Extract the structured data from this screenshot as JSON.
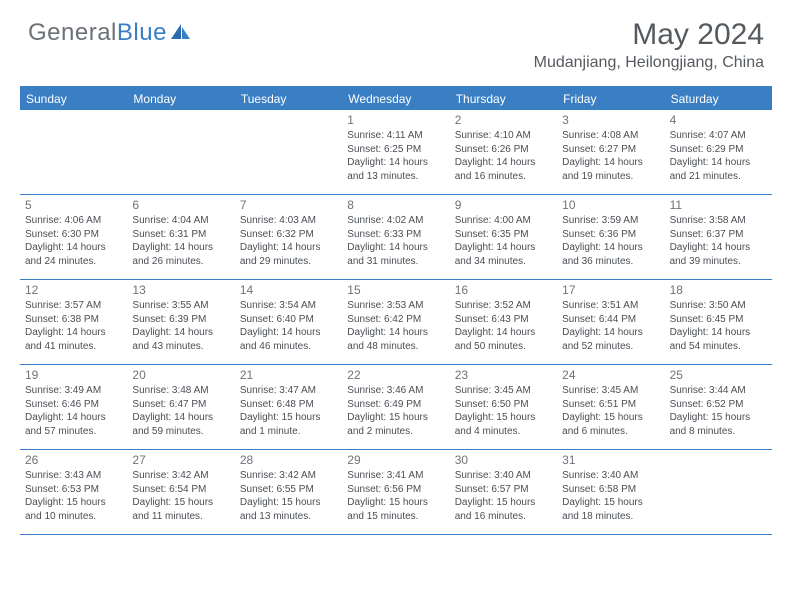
{
  "logo": {
    "text1": "General",
    "text2": "Blue"
  },
  "title": "May 2024",
  "location": "Mudanjiang, Heilongjiang, China",
  "header_bg": "#3a7fc4",
  "border_color": "#3a7fc4",
  "weekdays": [
    "Sunday",
    "Monday",
    "Tuesday",
    "Wednesday",
    "Thursday",
    "Friday",
    "Saturday"
  ],
  "weeks": [
    [
      null,
      null,
      null,
      {
        "n": "1",
        "sr": "4:11 AM",
        "ss": "6:25 PM",
        "dl": "14 hours and 13 minutes."
      },
      {
        "n": "2",
        "sr": "4:10 AM",
        "ss": "6:26 PM",
        "dl": "14 hours and 16 minutes."
      },
      {
        "n": "3",
        "sr": "4:08 AM",
        "ss": "6:27 PM",
        "dl": "14 hours and 19 minutes."
      },
      {
        "n": "4",
        "sr": "4:07 AM",
        "ss": "6:29 PM",
        "dl": "14 hours and 21 minutes."
      }
    ],
    [
      {
        "n": "5",
        "sr": "4:06 AM",
        "ss": "6:30 PM",
        "dl": "14 hours and 24 minutes."
      },
      {
        "n": "6",
        "sr": "4:04 AM",
        "ss": "6:31 PM",
        "dl": "14 hours and 26 minutes."
      },
      {
        "n": "7",
        "sr": "4:03 AM",
        "ss": "6:32 PM",
        "dl": "14 hours and 29 minutes."
      },
      {
        "n": "8",
        "sr": "4:02 AM",
        "ss": "6:33 PM",
        "dl": "14 hours and 31 minutes."
      },
      {
        "n": "9",
        "sr": "4:00 AM",
        "ss": "6:35 PM",
        "dl": "14 hours and 34 minutes."
      },
      {
        "n": "10",
        "sr": "3:59 AM",
        "ss": "6:36 PM",
        "dl": "14 hours and 36 minutes."
      },
      {
        "n": "11",
        "sr": "3:58 AM",
        "ss": "6:37 PM",
        "dl": "14 hours and 39 minutes."
      }
    ],
    [
      {
        "n": "12",
        "sr": "3:57 AM",
        "ss": "6:38 PM",
        "dl": "14 hours and 41 minutes."
      },
      {
        "n": "13",
        "sr": "3:55 AM",
        "ss": "6:39 PM",
        "dl": "14 hours and 43 minutes."
      },
      {
        "n": "14",
        "sr": "3:54 AM",
        "ss": "6:40 PM",
        "dl": "14 hours and 46 minutes."
      },
      {
        "n": "15",
        "sr": "3:53 AM",
        "ss": "6:42 PM",
        "dl": "14 hours and 48 minutes."
      },
      {
        "n": "16",
        "sr": "3:52 AM",
        "ss": "6:43 PM",
        "dl": "14 hours and 50 minutes."
      },
      {
        "n": "17",
        "sr": "3:51 AM",
        "ss": "6:44 PM",
        "dl": "14 hours and 52 minutes."
      },
      {
        "n": "18",
        "sr": "3:50 AM",
        "ss": "6:45 PM",
        "dl": "14 hours and 54 minutes."
      }
    ],
    [
      {
        "n": "19",
        "sr": "3:49 AM",
        "ss": "6:46 PM",
        "dl": "14 hours and 57 minutes."
      },
      {
        "n": "20",
        "sr": "3:48 AM",
        "ss": "6:47 PM",
        "dl": "14 hours and 59 minutes."
      },
      {
        "n": "21",
        "sr": "3:47 AM",
        "ss": "6:48 PM",
        "dl": "15 hours and 1 minute."
      },
      {
        "n": "22",
        "sr": "3:46 AM",
        "ss": "6:49 PM",
        "dl": "15 hours and 2 minutes."
      },
      {
        "n": "23",
        "sr": "3:45 AM",
        "ss": "6:50 PM",
        "dl": "15 hours and 4 minutes."
      },
      {
        "n": "24",
        "sr": "3:45 AM",
        "ss": "6:51 PM",
        "dl": "15 hours and 6 minutes."
      },
      {
        "n": "25",
        "sr": "3:44 AM",
        "ss": "6:52 PM",
        "dl": "15 hours and 8 minutes."
      }
    ],
    [
      {
        "n": "26",
        "sr": "3:43 AM",
        "ss": "6:53 PM",
        "dl": "15 hours and 10 minutes."
      },
      {
        "n": "27",
        "sr": "3:42 AM",
        "ss": "6:54 PM",
        "dl": "15 hours and 11 minutes."
      },
      {
        "n": "28",
        "sr": "3:42 AM",
        "ss": "6:55 PM",
        "dl": "15 hours and 13 minutes."
      },
      {
        "n": "29",
        "sr": "3:41 AM",
        "ss": "6:56 PM",
        "dl": "15 hours and 15 minutes."
      },
      {
        "n": "30",
        "sr": "3:40 AM",
        "ss": "6:57 PM",
        "dl": "15 hours and 16 minutes."
      },
      {
        "n": "31",
        "sr": "3:40 AM",
        "ss": "6:58 PM",
        "dl": "15 hours and 18 minutes."
      },
      null
    ]
  ]
}
